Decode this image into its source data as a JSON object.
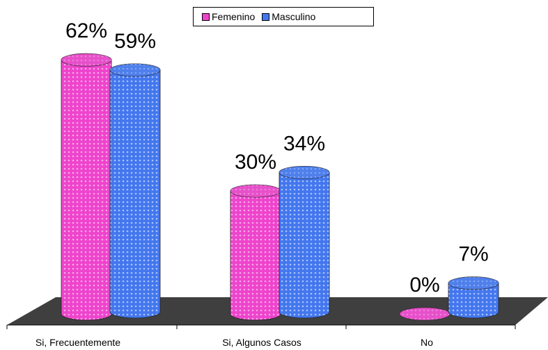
{
  "chart_data": {
    "type": "bar",
    "categories": [
      "Si, Frecuentemente",
      "Si, Algunos Casos",
      "No"
    ],
    "series": [
      {
        "name": "Femenino",
        "values": [
          62,
          30,
          0
        ],
        "labels": [
          "62%",
          "30%",
          "0%"
        ]
      },
      {
        "name": "Masculino",
        "values": [
          59,
          34,
          7
        ],
        "labels": [
          "59%",
          "34%",
          "7%"
        ]
      }
    ],
    "legend_position": "top-center",
    "colors": {
      "Femenino": "#ee44cc",
      "Masculino": "#4477ee",
      "floor": "#3f3f3f"
    }
  }
}
